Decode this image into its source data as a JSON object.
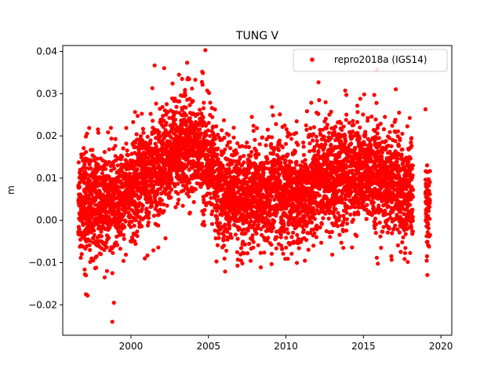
{
  "chart_data": {
    "type": "scatter",
    "title": "TUNG V",
    "xlabel": "",
    "ylabel": "m",
    "xlim": [
      1995.6,
      2020.7
    ],
    "ylim": [
      -0.0272,
      0.0414
    ],
    "xticks": [
      2000,
      2005,
      2010,
      2015,
      2020
    ],
    "xtick_labels": [
      "2000",
      "2005",
      "2010",
      "2015",
      "2020"
    ],
    "yticks": [
      -0.02,
      -0.01,
      0.0,
      0.01,
      0.02,
      0.03,
      0.04
    ],
    "ytick_labels": [
      "−0.02",
      "−0.01",
      "0.00",
      "0.01",
      "0.02",
      "0.03",
      "0.04"
    ],
    "grid": false,
    "legend": {
      "position": "top-right"
    },
    "series": [
      {
        "name": "repro2018a (IGS14)",
        "color": "#ff0000",
        "marker": "dot",
        "coverage": [
          [
            1996.6,
            2018.2
          ],
          [
            2019.0,
            2019.3
          ]
        ],
        "trend": [
          [
            1996.6,
            0.005
          ],
          [
            1998.5,
            0.003
          ],
          [
            2000.0,
            0.008
          ],
          [
            2001.5,
            0.012
          ],
          [
            2002.5,
            0.015
          ],
          [
            2003.5,
            0.018
          ],
          [
            2004.5,
            0.016
          ],
          [
            2005.5,
            0.01
          ],
          [
            2006.5,
            0.005
          ],
          [
            2008.0,
            0.006
          ],
          [
            2009.5,
            0.007
          ],
          [
            2011.0,
            0.006
          ],
          [
            2012.0,
            0.01
          ],
          [
            2013.5,
            0.011
          ],
          [
            2015.0,
            0.012
          ],
          [
            2016.0,
            0.01
          ],
          [
            2017.0,
            0.008
          ],
          [
            2018.2,
            0.007
          ],
          [
            2019.0,
            0.004
          ],
          [
            2019.3,
            0.004
          ]
        ],
        "scatter_sd": 0.006,
        "outliers": [
          [
            1997.1,
            -0.0175
          ],
          [
            1997.2,
            -0.0178
          ],
          [
            1997.1,
            -0.013
          ],
          [
            1998.3,
            -0.0135
          ],
          [
            1998.8,
            -0.0125
          ],
          [
            1998.9,
            -0.0195
          ],
          [
            1998.8,
            -0.024
          ],
          [
            2000.9,
            -0.009
          ],
          [
            2004.8,
            0.0403
          ],
          [
            2004.6,
            0.0352
          ],
          [
            2003.1,
            0.0345
          ],
          [
            2012.1,
            0.0327
          ],
          [
            2013.9,
            0.0297
          ],
          [
            2015.7,
            0.0297
          ],
          [
            2014.8,
            0.0288
          ],
          [
            2019.0,
            0.0263
          ],
          [
            2013.7,
            -0.0065
          ],
          [
            2016.8,
            -0.0085
          ],
          [
            2019.1,
            -0.0085
          ],
          [
            2007.1,
            -0.0095
          ],
          [
            2006.9,
            -0.0093
          ],
          [
            2009.7,
            -0.006
          ],
          [
            2011.3,
            0.0225
          ],
          [
            2007.8,
            0.0245
          ],
          [
            2018.1,
            0.0195
          ],
          [
            2017.3,
            0.0255
          ],
          [
            2003.3,
            0.0335
          ]
        ]
      }
    ]
  }
}
